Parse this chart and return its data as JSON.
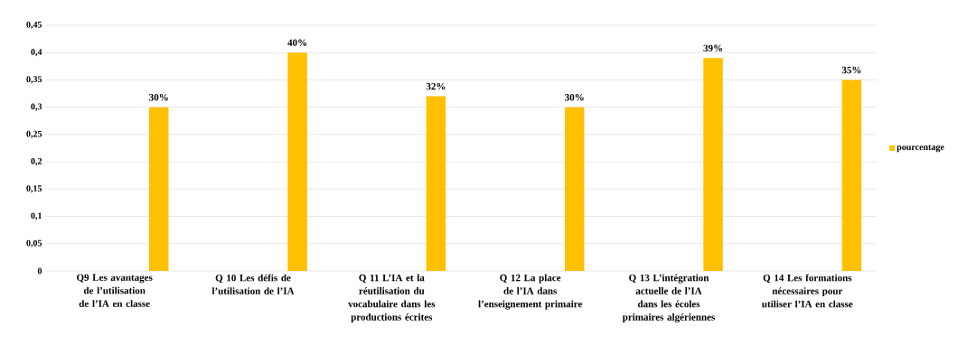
{
  "chart_data": {
    "type": "bar",
    "categories": [
      "Q9 Les avantages de l’utilisation de l’IA en classe",
      "Q 10 Les défis de l’utilisation de l’IA",
      "Q 11 L’IA et la réutilisation du vocabulaire dans les productions écrites",
      "Q 12 La place de l’IA dans l’enseignement primaire",
      "Q 13 L’intégration actuelle de l’IA dans les écoles primaires algériennes",
      "Q 14 Les formations nécessaires pour utiliser l’IA en classe"
    ],
    "series": [
      {
        "name": "pourcentage",
        "color": "#ffc000",
        "values": [
          0.3,
          0.4,
          0.32,
          0.3,
          0.39,
          0.35
        ],
        "value_labels": [
          "30%",
          "40%",
          "32%",
          "30%",
          "39%",
          "35%"
        ]
      }
    ],
    "ylim": [
      0,
      0.45
    ],
    "yticks": [
      0,
      {
        "value": 0.05,
        "label": "0,05"
      },
      {
        "value": 0.1,
        "label": "0,1"
      },
      {
        "value": 0.15,
        "label": "0,15"
      },
      {
        "value": 0.2,
        "label": "0,2"
      },
      {
        "value": 0.25,
        "label": "0,25"
      },
      {
        "value": 0.3,
        "label": "0,3"
      },
      {
        "value": 0.35,
        "label": "0,35"
      },
      {
        "value": 0.4,
        "label": "0,4"
      },
      {
        "value": 0.45,
        "label": "0,45"
      }
    ],
    "grid": "y",
    "legend": "right"
  }
}
